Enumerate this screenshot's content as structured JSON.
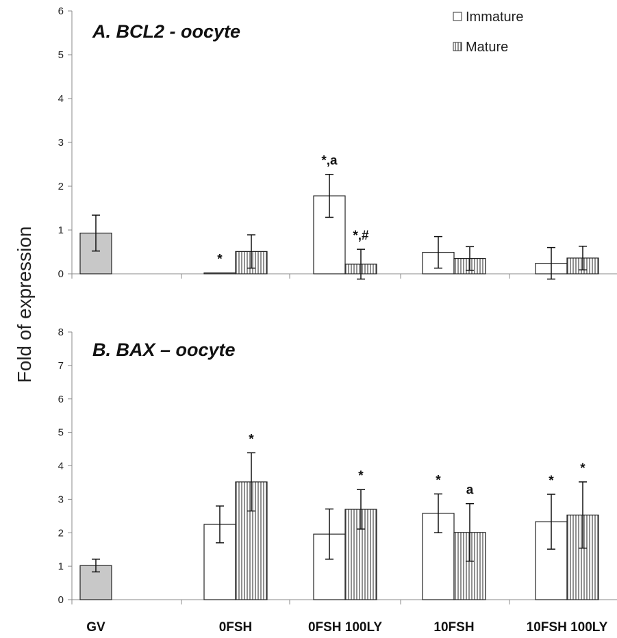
{
  "colors": {
    "gv": "#c8c8c8",
    "immature": "#ffffff",
    "mature_stripe": "#555555",
    "axis": "#888888"
  },
  "ylabel": "Fold of expression",
  "legend": {
    "immature": "Immature",
    "mature": "Mature",
    "position": "top-right"
  },
  "chart_data": [
    {
      "type": "bar",
      "title": "A. BCL2 - oocyte",
      "categories": [
        "GV",
        "0FSH",
        "0FSH 100LY",
        "10FSH",
        "10FSH 100LY"
      ],
      "ylim": [
        0,
        6
      ],
      "yticks": [
        "0",
        "1",
        "2",
        "3",
        "4",
        "5",
        "6"
      ],
      "gv": {
        "value": 0.93,
        "err": 0.41
      },
      "series": [
        {
          "name": "Immature",
          "values": [
            null,
            0.02,
            1.78,
            0.49,
            0.24
          ],
          "errors": [
            null,
            0,
            0.49,
            0.36,
            0.36
          ],
          "annotations": [
            null,
            "*",
            "*,a",
            "",
            ""
          ]
        },
        {
          "name": "Mature",
          "values": [
            null,
            0.51,
            0.22,
            0.35,
            0.36
          ],
          "errors": [
            null,
            0.38,
            0.34,
            0.27,
            0.27
          ],
          "annotations": [
            null,
            "",
            "*,#",
            "",
            ""
          ]
        }
      ]
    },
    {
      "type": "bar",
      "title": "B. BAX – oocyte",
      "categories": [
        "GV",
        "0FSH",
        "0FSH 100LY",
        "10FSH",
        "10FSH 100LY"
      ],
      "ylim": [
        0,
        8
      ],
      "yticks": [
        "0",
        "1",
        "2",
        "3",
        "4",
        "5",
        "6",
        "7",
        "8"
      ],
      "gv": {
        "value": 1.02,
        "err": 0.19
      },
      "series": [
        {
          "name": "Immature",
          "values": [
            null,
            2.25,
            1.96,
            2.58,
            2.33
          ],
          "errors": [
            null,
            0.55,
            0.75,
            0.58,
            0.82
          ],
          "annotations": [
            null,
            "",
            "",
            "*",
            "*"
          ]
        },
        {
          "name": "Mature",
          "values": [
            null,
            3.52,
            2.7,
            2.01,
            2.53
          ],
          "errors": [
            null,
            0.87,
            0.59,
            0.86,
            0.99
          ],
          "annotations": [
            null,
            "*",
            "*",
            "a",
            "*"
          ]
        }
      ]
    }
  ]
}
